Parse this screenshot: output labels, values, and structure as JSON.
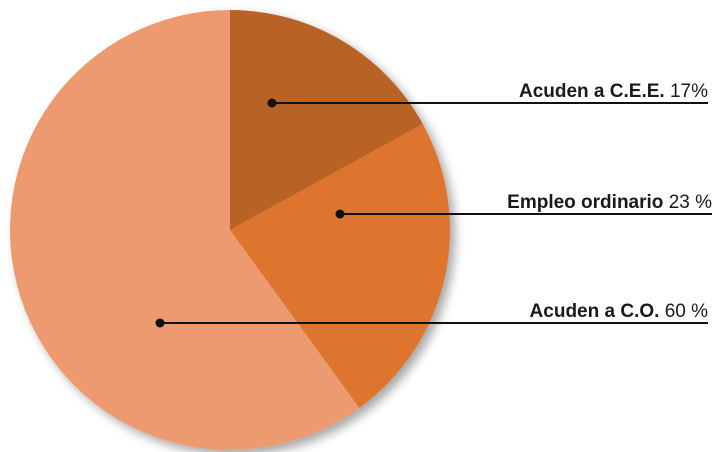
{
  "chart_data": {
    "type": "pie",
    "categories": [
      "Acuden a C.E.E.",
      "Empleo ordinario",
      "Acuden a C.O."
    ],
    "values": [
      17,
      23,
      60
    ],
    "value_labels": [
      "17%",
      "23 %",
      "60 %"
    ],
    "colors": [
      "#b86226",
      "#de752d",
      "#ee9a70"
    ]
  }
}
